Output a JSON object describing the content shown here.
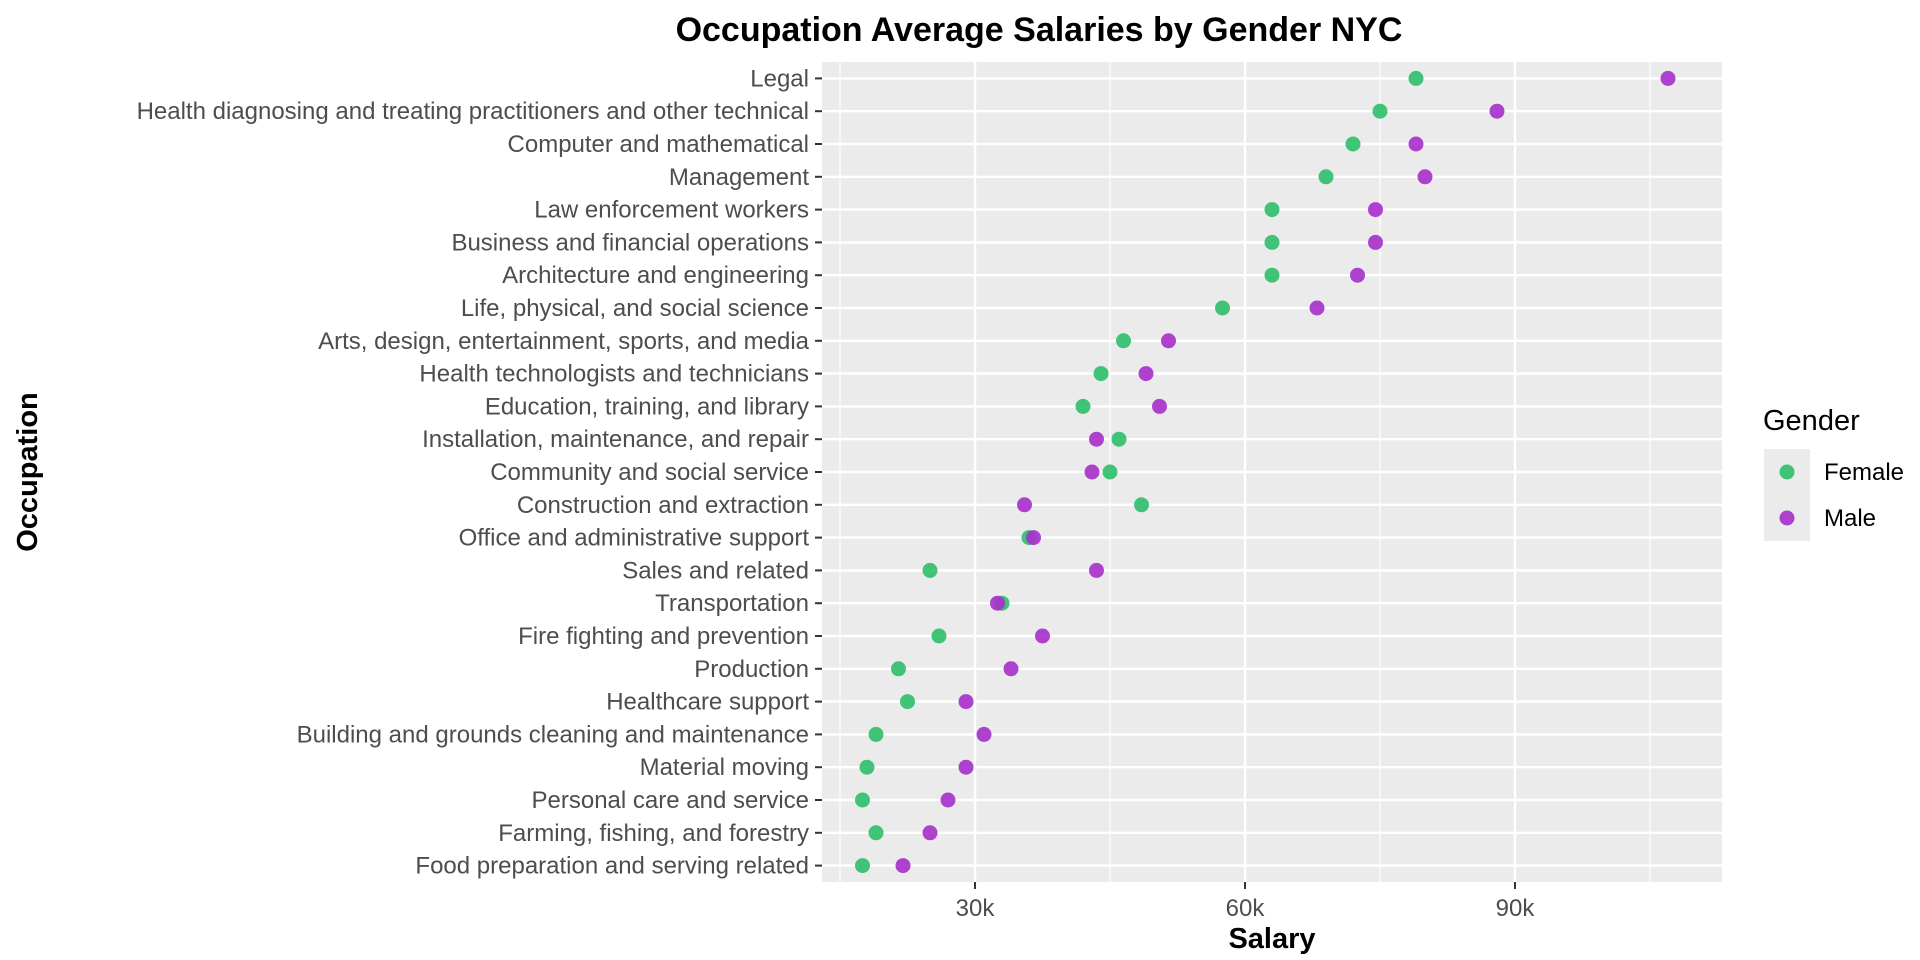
{
  "chart_data": {
    "type": "scatter",
    "title": "Occupation Average Salaries by Gender NYC",
    "xlabel": "Salary",
    "ylabel": "Occupation",
    "xlim": [
      13000,
      113000
    ],
    "x_ticks": [
      30000,
      60000,
      90000
    ],
    "x_tick_labels": [
      "30k",
      "60k",
      "90k"
    ],
    "grid": true,
    "legend": {
      "title": "Gender",
      "position": "right"
    },
    "categories": [
      "Legal",
      "Health diagnosing and treating practitioners and other technical",
      "Computer and mathematical",
      "Management",
      "Law enforcement workers",
      "Business and financial operations",
      "Architecture and engineering",
      "Life, physical, and social science",
      "Arts, design, entertainment, sports, and media",
      "Health technologists and technicians",
      "Education, training, and library",
      "Installation, maintenance, and repair",
      "Community and social service",
      "Construction and extraction",
      "Office and administrative support",
      "Sales and related",
      "Transportation",
      "Fire fighting and prevention",
      "Production",
      "Healthcare support",
      "Building and grounds cleaning and maintenance",
      "Material moving",
      "Personal care and service",
      "Farming, fishing, and forestry",
      "Food preparation and serving related"
    ],
    "series": [
      {
        "name": "Female",
        "color": "#2ebf6a",
        "values": [
          79000,
          75000,
          72000,
          69000,
          63000,
          63000,
          63000,
          57500,
          46500,
          44000,
          42000,
          46000,
          45000,
          48500,
          36000,
          25000,
          33000,
          26000,
          21500,
          22500,
          19000,
          18000,
          17500,
          19000,
          17500
        ]
      },
      {
        "name": "Male",
        "color": "#a62fcb",
        "values": [
          107000,
          88000,
          79000,
          80000,
          74500,
          74500,
          72500,
          68000,
          51500,
          49000,
          50500,
          43500,
          43000,
          35500,
          36500,
          43500,
          32500,
          37500,
          34000,
          29000,
          31000,
          29000,
          27000,
          25000,
          22000
        ]
      }
    ]
  }
}
